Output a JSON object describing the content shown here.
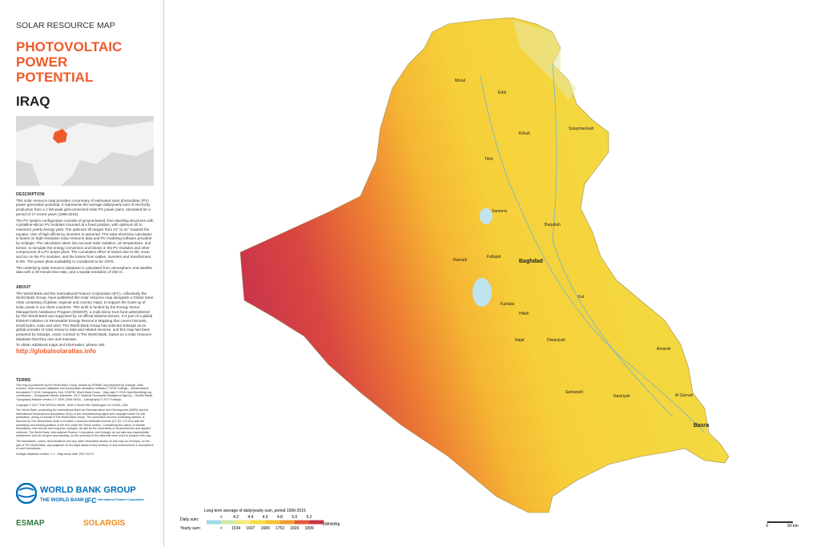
{
  "header": {
    "kicker": "SOLAR RESOURCE MAP",
    "title": [
      "PHOTOVOLTAIC",
      "POWER",
      "POTENTIAL"
    ],
    "country": "IRAQ"
  },
  "description": {
    "heading": "DESCRIPTION",
    "paragraphs": [
      "This solar resource map provides a summary of estimated solar photovoltaic (PV) power generation potential. It represents the average daily/yearly sum of electricity production from a 1 kW peak grid-connected solar PV power plant, calculated for a period of 17 recent years (1999-2015).",
      "The PV system configuration consists of ground-based, free-standing structures with crystalline-silicon PV modules mounted at a fixed position, with optimum tilt to maximize yearly energy yield. The optimum tilt ranges from 24° to 31° towards the equator. Use of high efficiency inverters is assumed. The solar electricity calculation is based on high-resolution solar resource data and PV modeling software provided by Solargis. The calculation takes into account solar radiation, air temperature, and terrain, to simulate the energy conversion and losses in the PV modules and other components of a PV power plant. The cumulative effect of losses due to dirt, snow and ice on the PV modules, and the losses from cables, inverters and transformers, is 9%. The power plant availability is considered to be 100%.",
      "The underlying solar resource database is calculated from atmospheric and satellite data with a 30-minute time step, and a spatial resolution of 250 m."
    ]
  },
  "about": {
    "heading": "ABOUT",
    "paragraphs": [
      "The World Bank and the International Finance Corporation (IFC), collectively the World Bank Group, have published this solar resource map alongside a Global Solar Atlas consisting of global, regional and country maps, to support the scale-up of solar power in our client countries. This work is funded by the Energy Sector Management Assistance Program (ESMAP), a multi-donor trust fund administered by The World Bank and supported by 13 official bilateral donors. It is part of a global ESMAP initiative on Renewable Energy Resource Mapping that covers biomass, small hydro, solar and wind. The World Bank Group has selected Solargis as its global provider of solar resource data and related services, and this map has been prepared by Solargis, under contract to The World Bank, based on a solar resource database that they own and maintain."
    ],
    "link_intro": "To obtain additional maps and information, please visit:",
    "link": "http://globalsolaratlas.info"
  },
  "terms": {
    "heading": "TERMS",
    "paragraphs": [
      "This map is published by the World Bank Group, funded by ESMAP, and prepared by Solargis. Data sources: Solar resource database and photovoltaic simulation software © 2016 Solargis – Administrative boundaries © 2016 Cartography Unit, GSDPM, World Bank Group – Map data © 2016 OpenStreetMap.org contributors – Geographic Names Database, 2017 National Geospatial-Intelligence Agency – Shuttle Radar Topography Mission version 2 © 2000–2006 NASA – Cartography © 2017 Solargis",
      "Copyright © 2017 THE WORLD BANK, 1818 H Street NW, Washington DC 20433, USA",
      "The World Bank, comprising the International Bank for Reconstruction and Development (IBRD) and the International Development Association (IDA), is the commissioning agent and copyright holder for this publication, acting on behalf of The World Bank Group. The publication and the underlying dataset, is licensed by The World Bank under a Creative Commons Attribution license (CC BY 4.0 IGO) with the mandatory and binding addition of the text under the Terms section. Considering the nature of climate fluctuations, inter-annual and long-term changes, as well as the uncertainty of measurements and applied methods, The World Bank, International Finance Corporation, and Solargis do not take any responsibility whatsoever, and do not give any warranty, on the accuracy of the data that were used to produce this map.",
      "The boundaries, colors, denominations and any other information shown on this map do not imply, on the part of The World Bank, any judgment on the legal status of any territory, or any endorsement or acceptance of such boundaries.",
      "Solargis database version: 2.1 – Map issue date: 2017-03-31"
    ]
  },
  "logos": {
    "wbg": "WORLD BANK GROUP",
    "wb": "THE WORLD BANK",
    "ifc": "IFC",
    "ifc_sub": "International Finance Corporation",
    "esmap": "ESMAP",
    "solargis": "SOLARGIS"
  },
  "legend": {
    "title": "Long term average of daily/yearly sum, period 1999-2015",
    "daily_label": "Daily sum:",
    "daily": [
      "<",
      "4.2",
      "4.4",
      "4.6",
      "4.8",
      "5.0",
      "5.2"
    ],
    "yearly_label": "Yearly sum:",
    "yearly": [
      "<",
      "1534",
      "1607",
      "1680",
      "1753",
      "1826",
      "1899"
    ],
    "unit": "kWh/kWp",
    "colors": [
      "#9fd9e6",
      "#cfe9a9",
      "#f2ea7a",
      "#f7dd3d",
      "#f6c335",
      "#f29a30",
      "#e2593c",
      "#c8344c"
    ]
  },
  "scale": {
    "start": "0",
    "end": "50 km"
  },
  "cities": [
    "Mosul",
    "Erbil",
    "Kirkuk",
    "Sulaymaniyah",
    "Tikrit",
    "Samarra",
    "Baqubah",
    "Ramadi",
    "Fallujah",
    "Baghdad",
    "Karbala",
    "Hillah",
    "Kut",
    "Najaf",
    "Diwaniyah",
    "Amarah",
    "Nasiriyah",
    "Samawah",
    "Basra",
    "Al Qurnah"
  ]
}
